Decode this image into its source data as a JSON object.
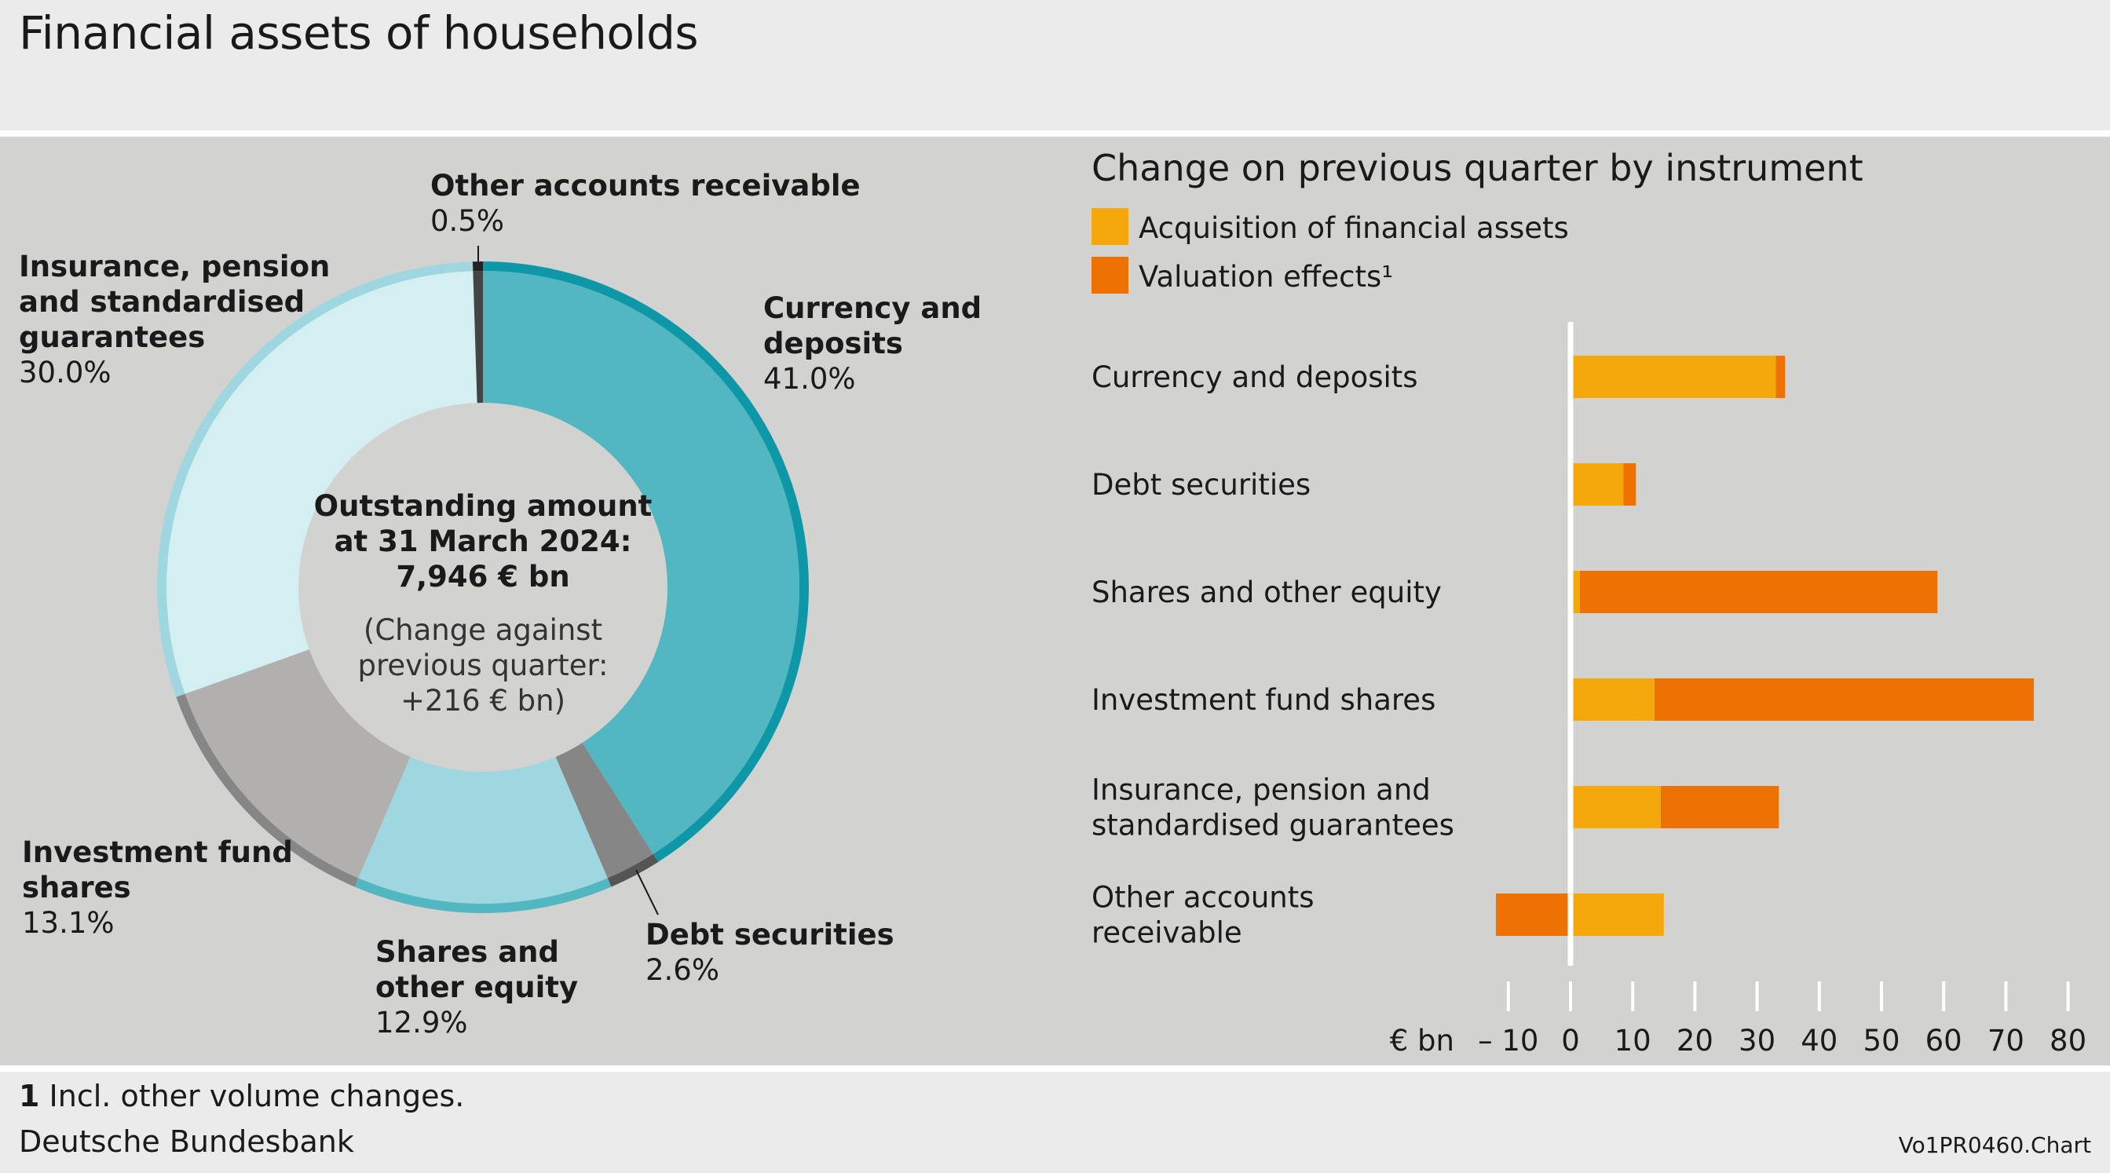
{
  "title": "Financial assets of households",
  "footnote": {
    "number": "1",
    "text": "Incl. other volume changes."
  },
  "source": "Deutsche Bundesbank",
  "chart_code": "Vo1PR0460.Chart",
  "chart_data": [
    {
      "type": "pie",
      "subtype": "donut",
      "center_label": {
        "line1": "Outstanding amount",
        "line2": "at 31 March 2024:",
        "line3": "7,946 € bn",
        "line4": "(Change against",
        "line5": "previous quarter:",
        "line6": "+216 € bn)"
      },
      "slices": [
        {
          "label_lines": [
            "Currency and",
            "deposits"
          ],
          "value": 41.0,
          "value_label": "41.0%",
          "color": "#53b7c1",
          "rim_color": "#0e97a7"
        },
        {
          "label_lines": [
            "Debt securities"
          ],
          "value": 2.6,
          "value_label": "2.6%",
          "color": "#868686",
          "rim_color": "#555555"
        },
        {
          "label_lines": [
            "Shares and",
            "other equity"
          ],
          "value": 12.9,
          "value_label": "12.9%",
          "color": "#9ed7df",
          "rim_color": "#53b7c1"
        },
        {
          "label_lines": [
            "Investment fund",
            "shares"
          ],
          "value": 13.1,
          "value_label": "13.1%",
          "color": "#b1b0af",
          "rim_color": "#868686"
        },
        {
          "label_lines": [
            "Insurance, pension",
            "and standardised",
            "guarantees"
          ],
          "value": 30.0,
          "value_label": "30.0%",
          "color": "#d4eff2",
          "rim_color": "#9ed7df"
        },
        {
          "label_lines": [
            "Other accounts receivable"
          ],
          "value": 0.5,
          "value_label": "0.5%",
          "color": "#444444",
          "rim_color": "#222222"
        }
      ]
    },
    {
      "type": "bar",
      "orientation": "horizontal",
      "stacked": true,
      "title": "Change on previous quarter by instrument",
      "xlabel": "€ bn",
      "xlim": [
        -13,
        82
      ],
      "xticks": [
        -10,
        0,
        10,
        20,
        30,
        40,
        50,
        60,
        70,
        80
      ],
      "xtick_labels": [
        "– 10",
        "0",
        "10",
        "20",
        "30",
        "40",
        "50",
        "60",
        "70",
        "80"
      ],
      "legend_position": "top-left",
      "categories": [
        [
          "Currency and deposits"
        ],
        [
          "Debt securities"
        ],
        [
          "Shares and other equity"
        ],
        [
          "Investment fund shares"
        ],
        [
          "Insurance, pension and",
          "standardised guarantees"
        ],
        [
          "Other accounts",
          "receivable"
        ]
      ],
      "series": [
        {
          "name": "Acquisition of financial assets",
          "color": "#f5a80c",
          "values": [
            33,
            8.5,
            1.5,
            13.5,
            14.5,
            15
          ]
        },
        {
          "name": "Valuation effects¹",
          "color": "#ee7203",
          "values": [
            1.5,
            2,
            57.5,
            61,
            19,
            -12
          ]
        }
      ]
    }
  ]
}
